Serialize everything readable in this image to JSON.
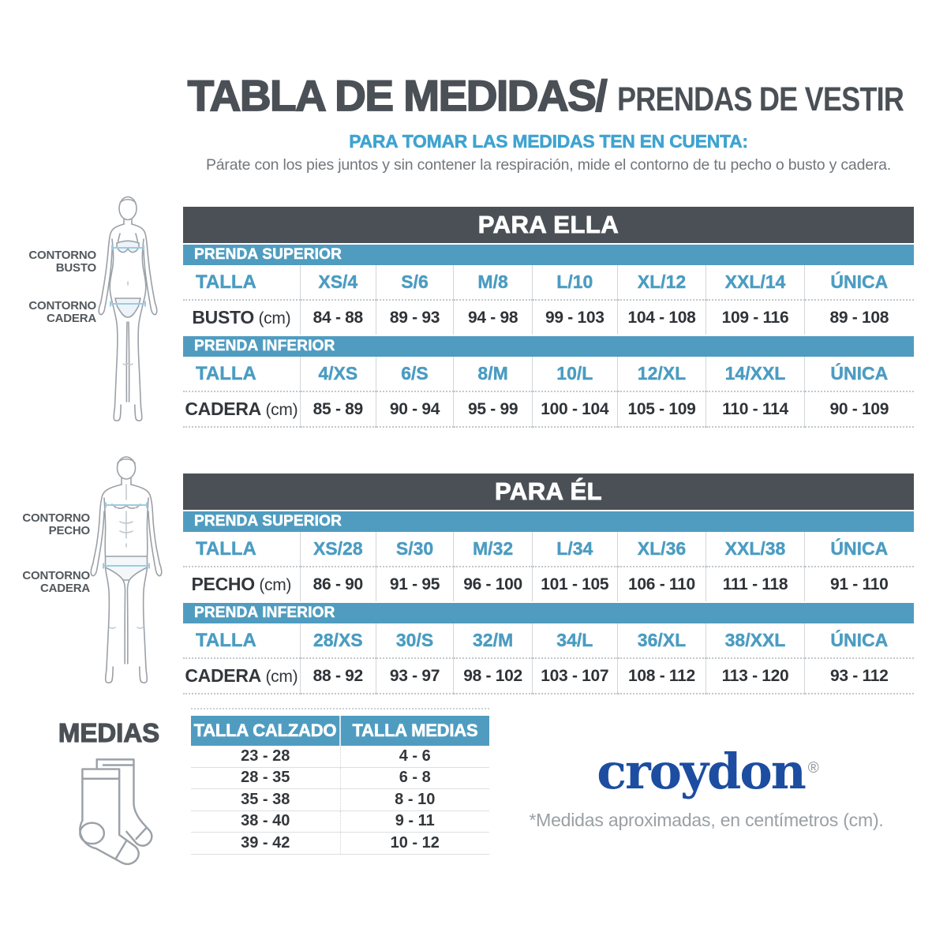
{
  "header": {
    "title_main": "TABLA DE MEDIDAS/",
    "title_sub": "PRENDAS DE VESTIR",
    "tip_heading": "PARA TOMAR LAS MEDIDAS TEN EN CUENTA:",
    "tip_text": "Párate con los pies juntos y sin contener la respiración, mide el contorno de tu pecho o busto y cadera."
  },
  "figures": {
    "female": {
      "labels": [
        [
          "CONTORNO",
          "BUSTO"
        ],
        [
          "CONTORNO",
          "CADERA"
        ]
      ]
    },
    "male": {
      "labels": [
        [
          "CONTORNO",
          "PECHO"
        ],
        [
          "CONTORNO",
          "CADERA"
        ]
      ]
    }
  },
  "tables": [
    {
      "id": "ella",
      "title": "PARA ELLA",
      "sections": [
        {
          "band": "PRENDA SUPERIOR",
          "size_label": "TALLA",
          "sizes": [
            "XS/4",
            "S/6",
            "M/8",
            "L/10",
            "XL/12",
            "XXL/14",
            "ÚNICA"
          ],
          "measure": "BUSTO",
          "unit": "(cm)",
          "values": [
            "84 - 88",
            "89 - 93",
            "94 - 98",
            "99 - 103",
            "104 - 108",
            "109 - 116",
            "89 - 108"
          ]
        },
        {
          "band": "PRENDA INFERIOR",
          "size_label": "TALLA",
          "sizes": [
            "4/XS",
            "6/S",
            "8/M",
            "10/L",
            "12/XL",
            "14/XXL",
            "ÚNICA"
          ],
          "measure": "CADERA",
          "unit": "(cm)",
          "values": [
            "85 - 89",
            "90 - 94",
            "95 - 99",
            "100 - 104",
            "105 - 109",
            "110 - 114",
            "90 - 109"
          ]
        }
      ]
    },
    {
      "id": "el",
      "title": "PARA ÉL",
      "sections": [
        {
          "band": "PRENDA SUPERIOR",
          "size_label": "TALLA",
          "sizes": [
            "XS/28",
            "S/30",
            "M/32",
            "L/34",
            "XL/36",
            "XXL/38",
            "ÚNICA"
          ],
          "measure": "PECHO",
          "unit": "(cm)",
          "values": [
            "86 - 90",
            "91 - 95",
            "96 - 100",
            "101 - 105",
            "106 - 110",
            "111 - 118",
            "91 - 110"
          ]
        },
        {
          "band": "PRENDA INFERIOR",
          "size_label": "TALLA",
          "sizes": [
            "28/XS",
            "30/S",
            "32/M",
            "34/L",
            "36/XL",
            "38/XXL",
            "ÚNICA"
          ],
          "measure": "CADERA",
          "unit": "(cm)",
          "values": [
            "88 - 92",
            "93 - 97",
            "98 - 102",
            "103 - 107",
            "108 - 112",
            "113 - 120",
            "93 - 112"
          ]
        }
      ]
    }
  ],
  "medias": {
    "title": "MEDIAS",
    "columns": [
      "TALLA CALZADO",
      "TALLA MEDIAS"
    ],
    "rows": [
      [
        "23 - 28",
        "4 - 6"
      ],
      [
        "28 - 35",
        "6 - 8"
      ],
      [
        "35 - 38",
        "8 - 10"
      ],
      [
        "38 - 40",
        "9 - 11"
      ],
      [
        "39 - 42",
        "10 - 12"
      ]
    ]
  },
  "footer": {
    "brand": "croydon",
    "registered_mark": "®",
    "note": "*Medidas aproximadas, en centímetros (cm)."
  },
  "colors": {
    "dark_band": "#4a5056",
    "blue_band": "#4f9cc0",
    "accent_blue": "#3fa3d0",
    "size_text_blue": "#4b9cc2",
    "logo_blue": "#1c4da0",
    "text_dark": "#2f3337",
    "muted_gray": "#72777c"
  }
}
